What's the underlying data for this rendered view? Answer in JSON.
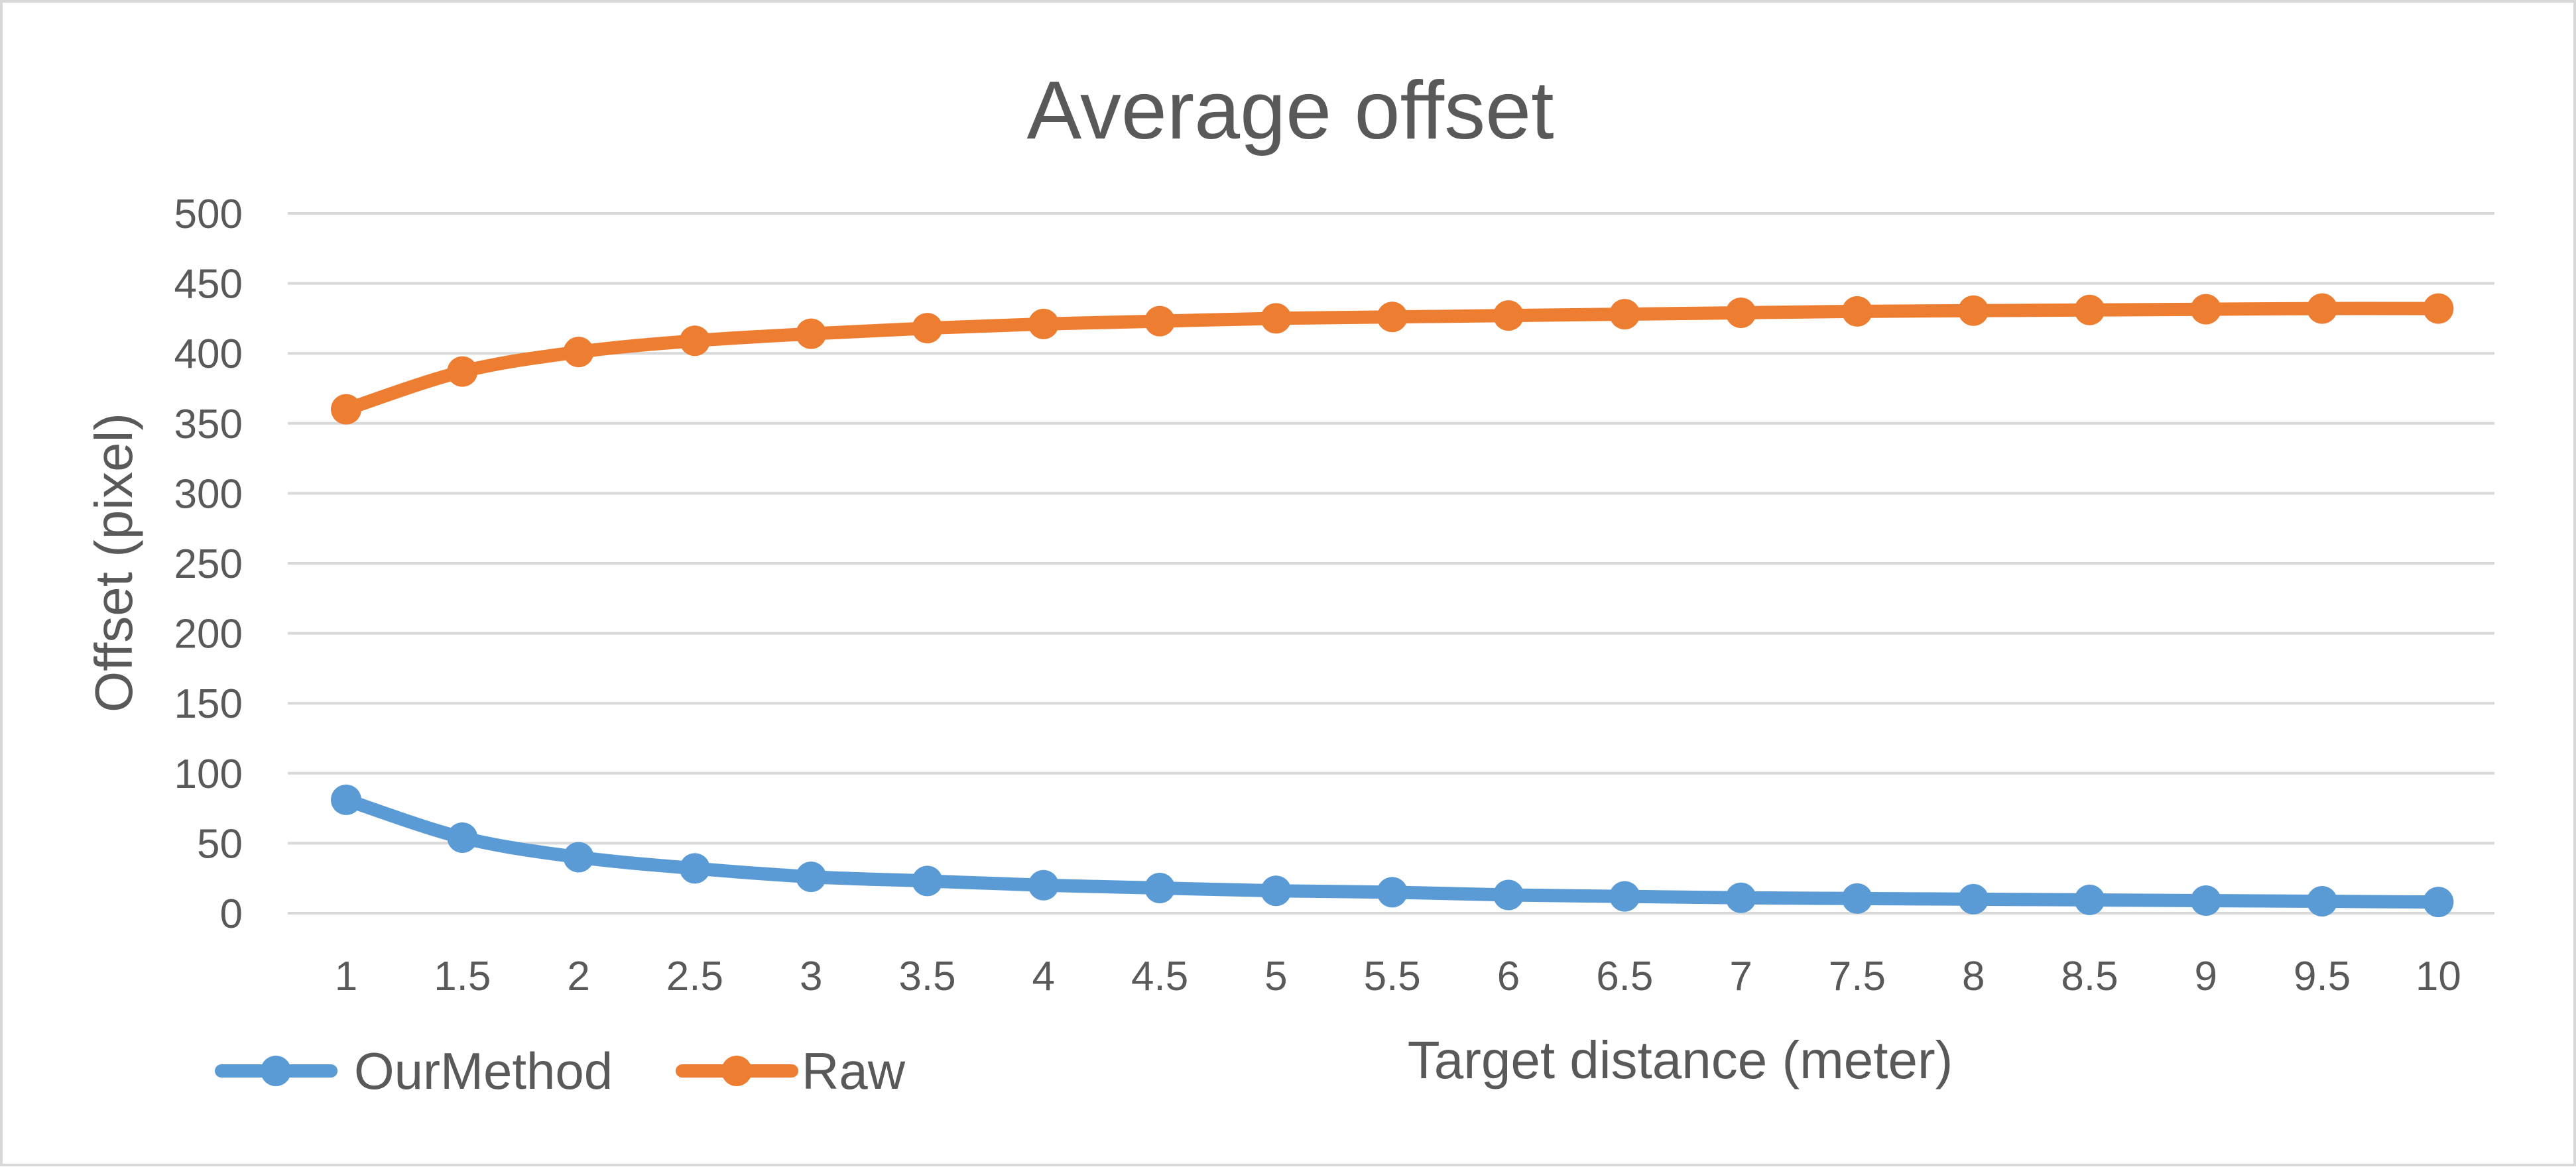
{
  "chart_data": {
    "type": "line",
    "title": "Average offset",
    "xlabel": "Target distance (meter)",
    "ylabel": "Offset (pixel)",
    "x": [
      1,
      1.5,
      2,
      2.5,
      3,
      3.5,
      4,
      4.5,
      5,
      5.5,
      6,
      6.5,
      7,
      7.5,
      8,
      8.5,
      9,
      9.5,
      10
    ],
    "x_tick_labels": [
      "1",
      "1.5",
      "2",
      "2.5",
      "3",
      "3.5",
      "4",
      "4.5",
      "5",
      "5.5",
      "6",
      "6.5",
      "7",
      "7.5",
      "8",
      "8.5",
      "9",
      "9.5",
      "10"
    ],
    "ylim": [
      0,
      500
    ],
    "y_ticks": [
      0,
      50,
      100,
      150,
      200,
      250,
      300,
      350,
      400,
      450,
      500
    ],
    "y_tick_labels": [
      "0",
      "50",
      "100",
      "150",
      "200",
      "250",
      "300",
      "350",
      "400",
      "450",
      "500"
    ],
    "grid": true,
    "legend_position": "bottom-left",
    "series": [
      {
        "name": "OurMethod",
        "color": "#5b9bd5",
        "values": [
          81,
          54,
          40,
          32,
          26,
          23,
          20,
          18,
          16,
          15,
          13,
          12,
          11,
          10.5,
          10,
          9.5,
          9,
          8.5,
          8
        ]
      },
      {
        "name": "Raw",
        "color": "#ed7d31",
        "values": [
          360,
          387,
          401,
          409,
          414,
          418,
          421,
          423,
          425,
          426,
          427,
          428,
          429,
          430,
          430.5,
          431,
          431.5,
          432,
          432
        ]
      }
    ]
  }
}
